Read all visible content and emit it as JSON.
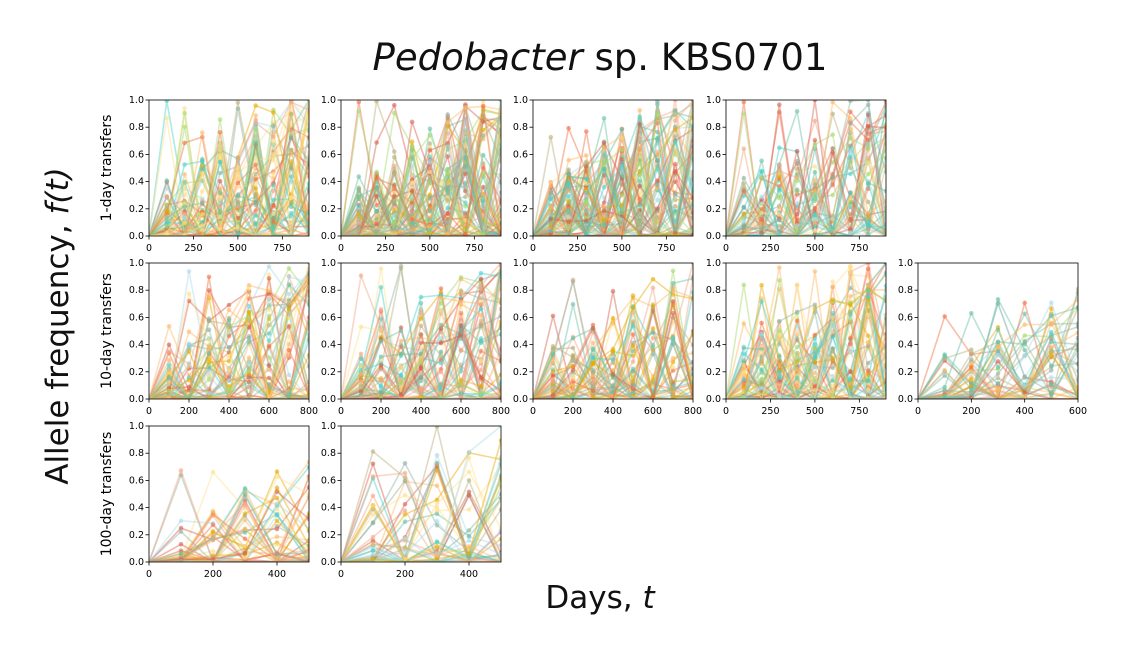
{
  "title": {
    "genus": "Pedobacter",
    "rest": " sp. KBS0701"
  },
  "xlabel": {
    "text": "Days, ",
    "var": "t"
  },
  "ylabel": {
    "text": "Allele frequency, ",
    "var": "f(t)"
  },
  "row_labels": [
    "1-day transfers",
    "10-day transfers",
    "100-day transfers"
  ],
  "colors": [
    "#d6604d",
    "#f4a582",
    "#fdb863",
    "#fee08b",
    "#a6d96a",
    "#66c2a5",
    "#48d1cc",
    "#8fb3a0",
    "#b8b07a",
    "#e6ab02",
    "#f46d43",
    "#abd9e9"
  ],
  "chart_data": [
    {
      "type": "line",
      "row": 0,
      "col": 0,
      "xticks": [
        0,
        250,
        500,
        750
      ],
      "xlim": [
        0,
        900
      ],
      "ylim": [
        0,
        1
      ],
      "yticks": [
        0.0,
        0.2,
        0.4,
        0.6,
        0.8,
        1.0
      ],
      "timepoints": [
        0,
        100,
        200,
        300,
        400,
        500,
        600,
        700,
        800,
        900
      ],
      "series_count": 60,
      "peak_frequency": 1.0
    },
    {
      "type": "line",
      "row": 0,
      "col": 1,
      "xticks": [
        0,
        250,
        500,
        750
      ],
      "xlim": [
        0,
        900
      ],
      "ylim": [
        0,
        1
      ],
      "yticks": [
        0.0,
        0.2,
        0.4,
        0.6,
        0.8,
        1.0
      ],
      "timepoints": [
        0,
        100,
        200,
        300,
        400,
        500,
        600,
        700,
        800,
        900
      ],
      "series_count": 70,
      "peak_frequency": 1.0
    },
    {
      "type": "line",
      "row": 0,
      "col": 2,
      "xticks": [
        0,
        250,
        500,
        750
      ],
      "xlim": [
        0,
        900
      ],
      "ylim": [
        0,
        1
      ],
      "yticks": [
        0.0,
        0.2,
        0.4,
        0.6,
        0.8,
        1.0
      ],
      "timepoints": [
        0,
        100,
        200,
        300,
        400,
        500,
        600,
        700,
        800,
        900
      ],
      "series_count": 70,
      "peak_frequency": 1.0
    },
    {
      "type": "line",
      "row": 0,
      "col": 3,
      "xticks": [
        0,
        250,
        500,
        750
      ],
      "xlim": [
        0,
        900
      ],
      "ylim": [
        0,
        1
      ],
      "yticks": [
        0.0,
        0.2,
        0.4,
        0.6,
        0.8,
        1.0
      ],
      "timepoints": [
        0,
        100,
        200,
        300,
        400,
        500,
        600,
        700,
        800,
        900
      ],
      "series_count": 45,
      "peak_frequency": 1.0
    },
    {
      "type": "line",
      "row": 1,
      "col": 0,
      "xticks": [
        0,
        200,
        400,
        600,
        800
      ],
      "xlim": [
        0,
        800
      ],
      "ylim": [
        0,
        1
      ],
      "yticks": [
        0.0,
        0.2,
        0.4,
        0.6,
        0.8,
        1.0
      ],
      "timepoints": [
        0,
        100,
        200,
        300,
        400,
        500,
        600,
        700,
        800
      ],
      "series_count": 50,
      "peak_frequency": 0.98
    },
    {
      "type": "line",
      "row": 1,
      "col": 1,
      "xticks": [
        0,
        200,
        400,
        600,
        800
      ],
      "xlim": [
        0,
        800
      ],
      "ylim": [
        0,
        1
      ],
      "yticks": [
        0.0,
        0.2,
        0.4,
        0.6,
        0.8,
        1.0
      ],
      "timepoints": [
        0,
        100,
        200,
        300,
        400,
        500,
        600,
        700,
        800
      ],
      "series_count": 50,
      "peak_frequency": 1.0
    },
    {
      "type": "line",
      "row": 1,
      "col": 2,
      "xticks": [
        0,
        200,
        400,
        600,
        800
      ],
      "xlim": [
        0,
        800
      ],
      "ylim": [
        0,
        1
      ],
      "yticks": [
        0.0,
        0.2,
        0.4,
        0.6,
        0.8,
        1.0
      ],
      "timepoints": [
        0,
        100,
        200,
        300,
        400,
        500,
        600,
        700,
        800
      ],
      "series_count": 45,
      "peak_frequency": 0.9
    },
    {
      "type": "line",
      "row": 1,
      "col": 3,
      "xticks": [
        0,
        250,
        500,
        750
      ],
      "xlim": [
        0,
        900
      ],
      "ylim": [
        0,
        1
      ],
      "yticks": [
        0.0,
        0.2,
        0.4,
        0.6,
        0.8,
        1.0
      ],
      "timepoints": [
        0,
        100,
        200,
        300,
        400,
        500,
        600,
        700,
        800,
        900
      ],
      "series_count": 60,
      "peak_frequency": 0.98
    },
    {
      "type": "line",
      "row": 1,
      "col": 4,
      "xticks": [
        0,
        200,
        400,
        600
      ],
      "xlim": [
        0,
        600
      ],
      "ylim": [
        0,
        1
      ],
      "yticks": [
        0.0,
        0.2,
        0.4,
        0.6,
        0.8,
        1.0
      ],
      "timepoints": [
        0,
        100,
        200,
        300,
        400,
        500,
        600
      ],
      "series_count": 40,
      "peak_frequency": 0.75
    },
    {
      "type": "line",
      "row": 2,
      "col": 0,
      "xticks": [
        0,
        200,
        400
      ],
      "xlim": [
        0,
        500
      ],
      "ylim": [
        0,
        1
      ],
      "yticks": [
        0.0,
        0.2,
        0.4,
        0.6,
        0.8,
        1.0
      ],
      "timepoints": [
        0,
        100,
        200,
        300,
        400,
        500
      ],
      "series_count": 40,
      "peak_frequency": 0.7
    },
    {
      "type": "line",
      "row": 2,
      "col": 1,
      "xticks": [
        0,
        200,
        400
      ],
      "xlim": [
        0,
        500
      ],
      "ylim": [
        0,
        1
      ],
      "yticks": [
        0.0,
        0.2,
        0.4,
        0.6,
        0.8,
        1.0
      ],
      "timepoints": [
        0,
        100,
        200,
        300,
        400,
        500
      ],
      "series_count": 40,
      "peak_frequency": 1.0
    }
  ]
}
